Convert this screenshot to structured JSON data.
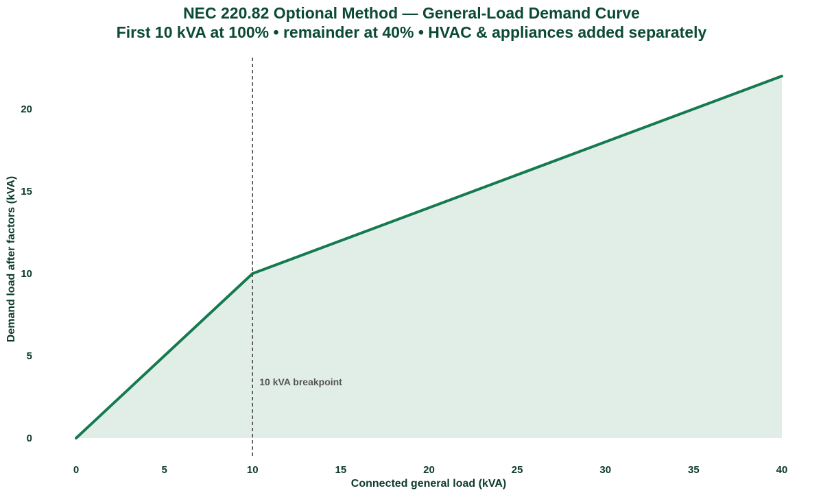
{
  "chart_data": {
    "type": "area",
    "title": "NEC 220.82 Optional Method — General-Load Demand Curve",
    "subtitle": "First 10 kVA at 100%  •  remainder at 40%  •  HVAC & appliances added separately",
    "xlabel": "Connected general load (kVA)",
    "ylabel": "Demand load after factors (kVA)",
    "x_ticks": [
      0,
      5,
      10,
      15,
      20,
      25,
      30,
      35,
      40
    ],
    "y_ticks": [
      0,
      5,
      10,
      15,
      20
    ],
    "xlim": [
      0,
      40
    ],
    "ylim": [
      0,
      22
    ],
    "grid": false,
    "legend": "none",
    "series": [
      {
        "x": [
          0,
          10,
          40
        ],
        "y": [
          0,
          10,
          22
        ]
      }
    ],
    "annotations": [
      {
        "type": "vline",
        "x": 10,
        "label": "10 kVA breakpoint"
      }
    ],
    "colors": {
      "line": "#157a4f",
      "fill": "#e1eee8",
      "text": "#0b4a34",
      "vline": "#444444",
      "annot": "#555555"
    }
  }
}
